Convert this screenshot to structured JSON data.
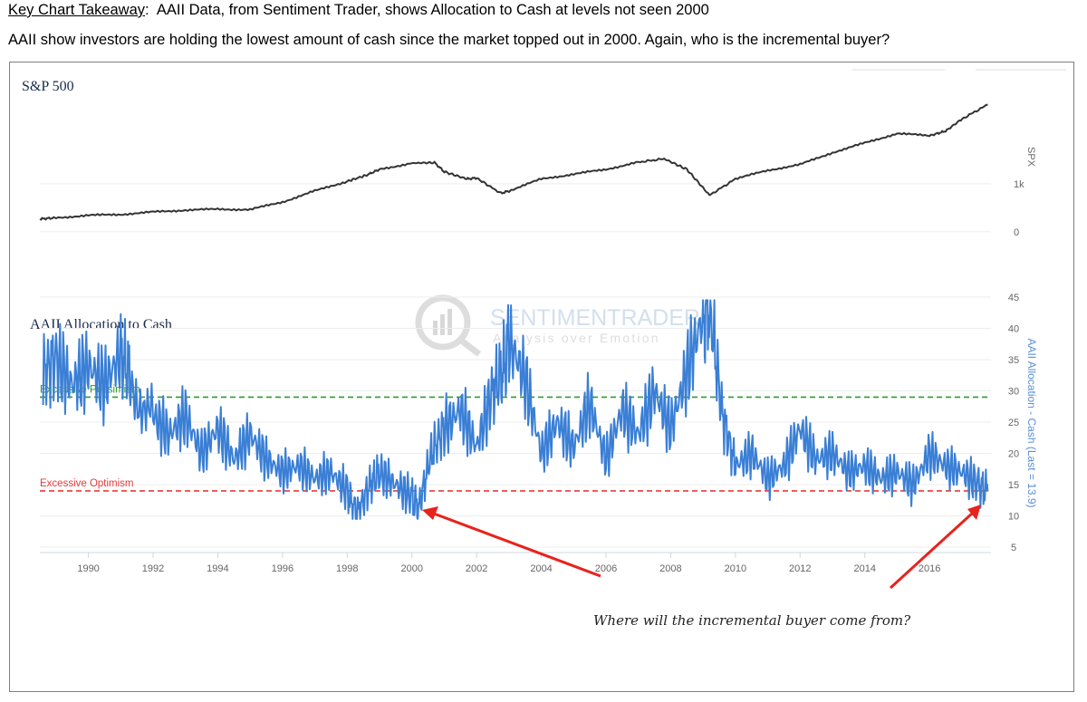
{
  "header": {
    "takeaway_label": "Key Chart Takeaway",
    "takeaway_sep": ":",
    "takeaway_text": "  AAII Data, from Sentiment Trader, shows Allocation to Cash at levels not seen 2000",
    "subtitle": "AAII show investors are holding the lowest amount of cash since the market topped out in 2000. Again, who is the incremental buyer?"
  },
  "watermark": {
    "brand": "SENTIMENTRADER",
    "tagline": "Analysis over Emotion"
  },
  "annotation": {
    "text": "Where will the incremental buyer come from?",
    "arrow_color": "#e8221d"
  },
  "chart_data": [
    {
      "type": "line",
      "title": "S&P 500",
      "ylabel": "SPX",
      "y_ticks": [
        "0",
        "1k"
      ],
      "ylim": [
        -250,
        3000
      ],
      "line_color": "#333333",
      "series": [
        {
          "x": [
            1988.5,
            1989,
            1990,
            1991,
            1992,
            1993,
            1994,
            1995,
            1996,
            1997,
            1998,
            1998.6,
            1999,
            2000,
            2000.7,
            2001,
            2001.7,
            2002,
            2002.75,
            2003,
            2004,
            2005,
            2006,
            2007,
            2007.8,
            2008.5,
            2009.2,
            2010,
            2011,
            2012,
            2013,
            2014,
            2015,
            2016,
            2016.5,
            2017,
            2017.8
          ],
          "values": [
            265,
            290,
            340,
            360,
            410,
            450,
            470,
            460,
            620,
            850,
            1050,
            1180,
            1300,
            1430,
            1440,
            1250,
            1100,
            1120,
            800,
            850,
            1100,
            1200,
            1300,
            1450,
            1520,
            1300,
            760,
            1100,
            1280,
            1400,
            1650,
            1850,
            2050,
            2000,
            2100,
            2350,
            2650
          ]
        }
      ]
    },
    {
      "type": "line",
      "title": "AAII Allocation to Cash",
      "ylabel": "AAII Allocation - Cash (Last = 13.9)",
      "y_ticks": [
        5,
        10,
        15,
        20,
        25,
        30,
        35,
        40,
        45
      ],
      "ylim": [
        5,
        45
      ],
      "x_ticks": [
        "1990",
        "1992",
        "1994",
        "1996",
        "1998",
        "2000",
        "2002",
        "2004",
        "2006",
        "2008",
        "2010",
        "2012",
        "2014",
        "2016"
      ],
      "line_color": "#3a7fd5",
      "thresholds": [
        {
          "label": "Excessive Pessimism",
          "value": 29,
          "color": "#2d9a2d"
        },
        {
          "label": "Excessive Optimism",
          "value": 14,
          "color": "#e63b3b"
        }
      ],
      "series": [
        {
          "x": [
            1988.6,
            1989,
            1989.5,
            1990,
            1990.5,
            1991,
            1991.3,
            1992,
            1992.5,
            1993,
            1993.5,
            1994,
            1994.5,
            1995,
            1995.5,
            1996,
            1996.5,
            1997,
            1997.5,
            1998,
            1998.3,
            1998.7,
            1999,
            1999.5,
            2000,
            2000.2,
            2000.6,
            2001,
            2001.5,
            2002,
            2002.5,
            2002.8,
            2003,
            2003.5,
            2004,
            2004.5,
            2005,
            2005.5,
            2006,
            2006.5,
            2007,
            2007.5,
            2008,
            2008.5,
            2009,
            2009.2,
            2009.6,
            2010,
            2010.5,
            2011,
            2011.5,
            2012,
            2012.5,
            2013,
            2013.5,
            2014,
            2014.5,
            2015,
            2015.5,
            2016,
            2016.5,
            2017,
            2017.5,
            2017.8
          ],
          "values": [
            33,
            35,
            31,
            34,
            31,
            36,
            32,
            26,
            23,
            26,
            20,
            24,
            19,
            23,
            19,
            17,
            18,
            16,
            17,
            14,
            10,
            15,
            17,
            15,
            13,
            11,
            20,
            24,
            27,
            21,
            30,
            33,
            38,
            32,
            20,
            25,
            21,
            28,
            19,
            27,
            23,
            30,
            24,
            33,
            42,
            44,
            26,
            18,
            20,
            16,
            18,
            24,
            19,
            20,
            17,
            18,
            16,
            17,
            15,
            20,
            18,
            17,
            15,
            13.9
          ]
        }
      ]
    }
  ]
}
